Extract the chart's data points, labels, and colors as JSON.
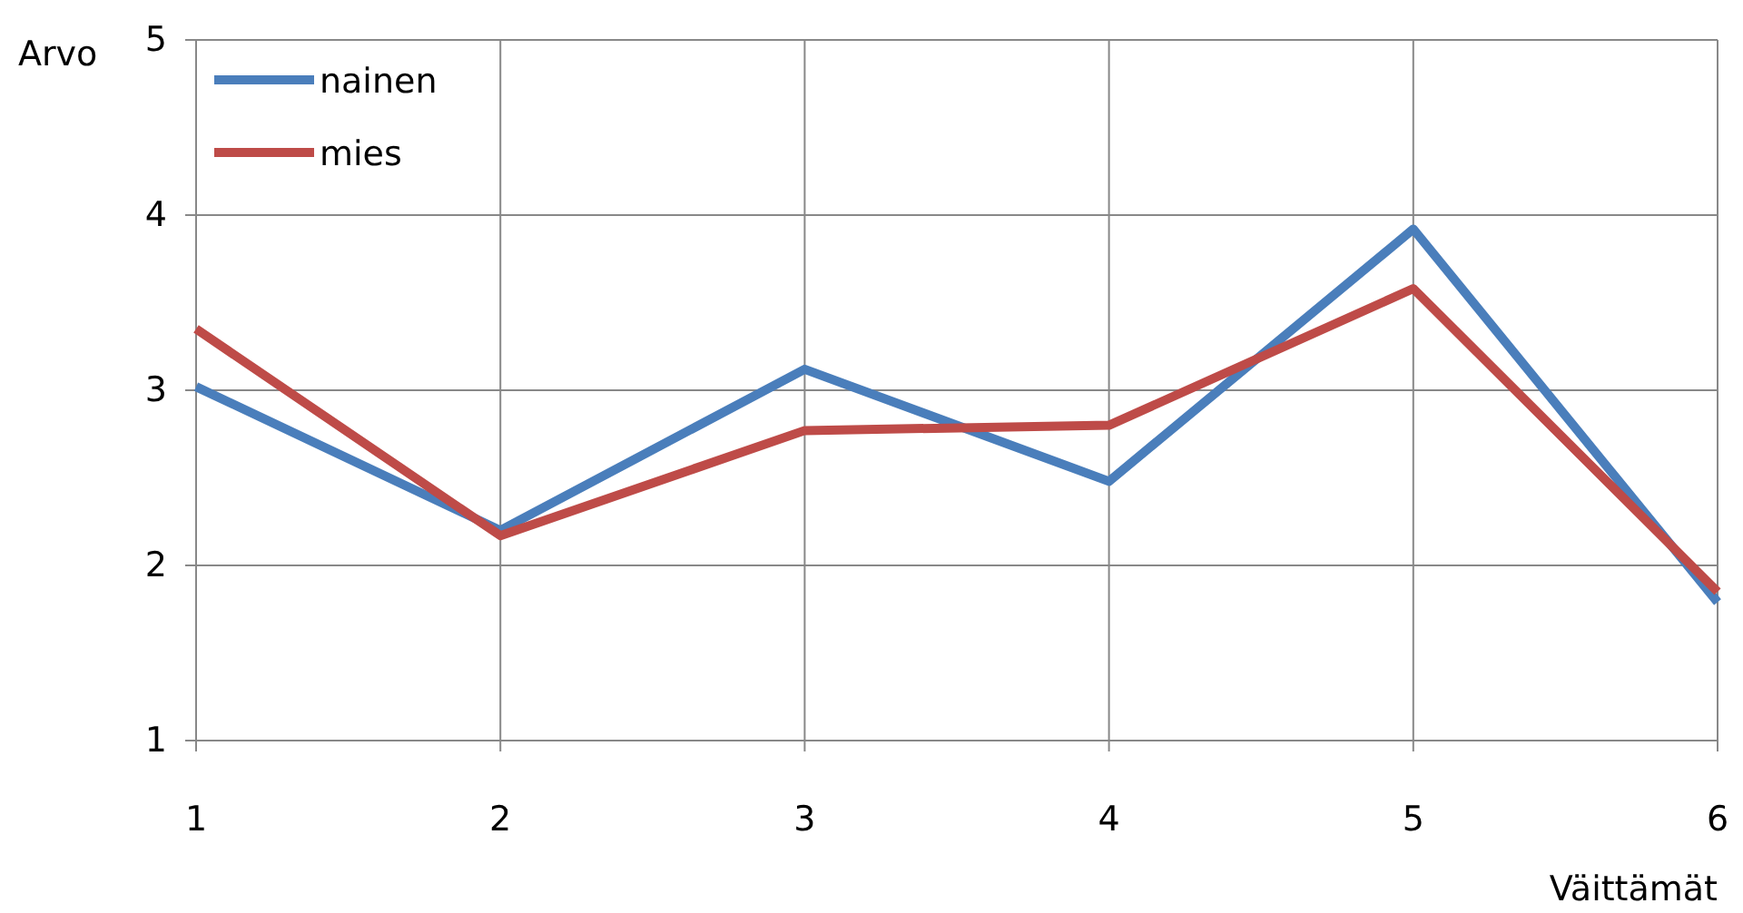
{
  "chart_data": {
    "type": "line",
    "xlabel": "Väittämät",
    "ylabel": "Arvo",
    "x": [
      1,
      2,
      3,
      4,
      5,
      6
    ],
    "series": [
      {
        "name": "nainen",
        "color": "#4a7ebb",
        "values": [
          3.02,
          2.2,
          3.12,
          2.48,
          3.92,
          1.79
        ]
      },
      {
        "name": "mies",
        "color": "#be4b48",
        "values": [
          3.35,
          2.17,
          2.77,
          2.8,
          3.58,
          1.85
        ]
      }
    ],
    "xlim": [
      1,
      6
    ],
    "xticks": [
      1,
      2,
      3,
      4,
      5,
      6
    ],
    "ylim": [
      1,
      5
    ],
    "yticks": [
      1,
      2,
      3,
      4,
      5
    ],
    "grid": true,
    "legend": "top left",
    "marker": "none",
    "line_style": "solid"
  }
}
